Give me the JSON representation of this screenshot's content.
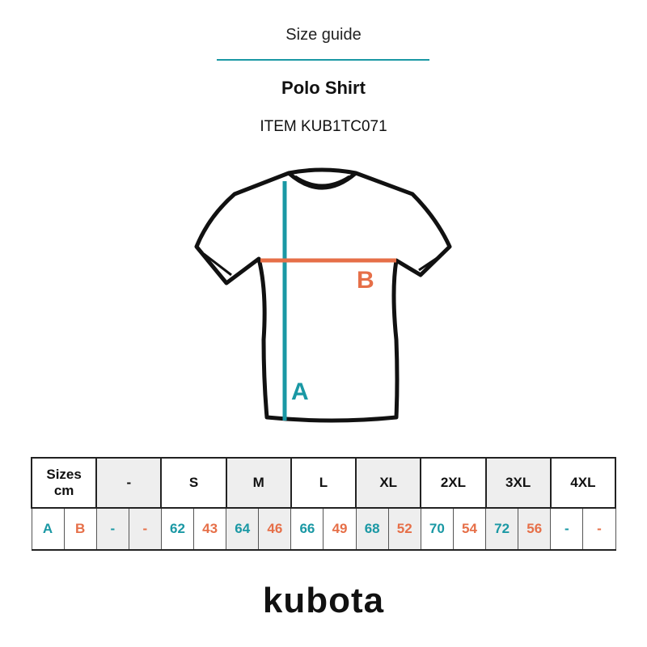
{
  "header": {
    "guide_label": "Size guide",
    "product_title": "Polo Shirt",
    "item_code": "ITEM KUB1TC071"
  },
  "colors": {
    "accent_teal": "#1a98a4",
    "accent_orange": "#e66f48",
    "shaded_cell": "#eeeeee"
  },
  "diagram": {
    "label_a": "A",
    "label_b": "B"
  },
  "table": {
    "corner": [
      "Sizes",
      "cm"
    ],
    "sizes": [
      {
        "label": "-",
        "a": "-",
        "b": "-"
      },
      {
        "label": "S",
        "a": "62",
        "b": "43"
      },
      {
        "label": "M",
        "a": "64",
        "b": "46"
      },
      {
        "label": "L",
        "a": "66",
        "b": "49"
      },
      {
        "label": "XL",
        "a": "68",
        "b": "52"
      },
      {
        "label": "2XL",
        "a": "70",
        "b": "54"
      },
      {
        "label": "3XL",
        "a": "72",
        "b": "56"
      },
      {
        "label": "4XL",
        "a": "-",
        "b": "-"
      }
    ],
    "row_labels": {
      "a": "A",
      "b": "B"
    }
  },
  "logo": {
    "text": "kubota"
  }
}
